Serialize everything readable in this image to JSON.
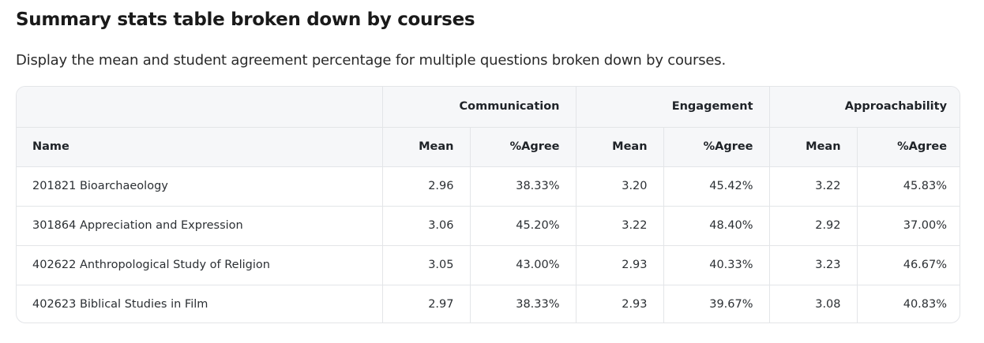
{
  "page": {
    "title": "Summary stats table broken down by courses",
    "subtitle": "Display the mean and student agreement percentage for multiple questions broken down by courses."
  },
  "table": {
    "groups": [
      "Communication",
      "Engagement",
      "Approachability"
    ],
    "columns": {
      "name": "Name",
      "mean": "Mean",
      "agree": "%Agree"
    },
    "rows": [
      {
        "name": "201821 Bioarchaeology",
        "values": [
          "2.96",
          "38.33%",
          "3.20",
          "45.42%",
          "3.22",
          "45.83%"
        ]
      },
      {
        "name": "301864 Appreciation and Expression",
        "values": [
          "3.06",
          "45.20%",
          "3.22",
          "48.40%",
          "2.92",
          "37.00%"
        ]
      },
      {
        "name": "402622 Anthropological Study of Religion",
        "values": [
          "3.05",
          "43.00%",
          "2.93",
          "40.33%",
          "3.23",
          "46.67%"
        ]
      },
      {
        "name": "402623 Biblical Studies in Film",
        "values": [
          "2.97",
          "38.33%",
          "2.93",
          "39.67%",
          "3.08",
          "40.83%"
        ]
      }
    ]
  }
}
